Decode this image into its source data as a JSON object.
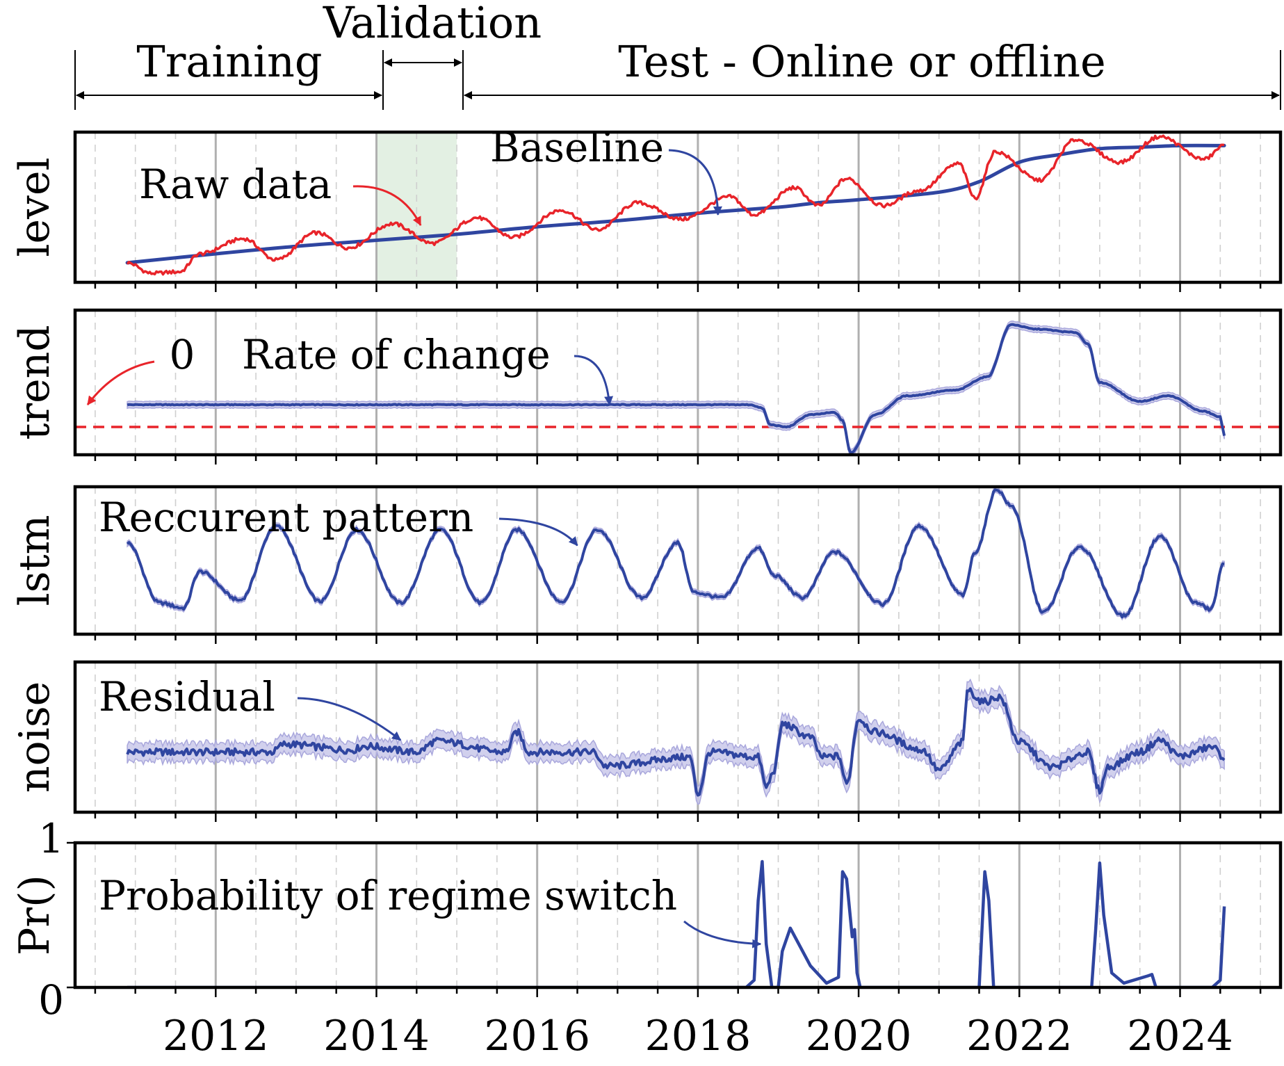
{
  "colors": {
    "series": "#2f45a0",
    "band": "#c9c8ea",
    "raw": "#e8242a",
    "zero_line": "#e8242a",
    "validation_fill": "#e3f0e3",
    "major_grid": "#b0b0b0",
    "minor_grid": "#cfcfcf",
    "frame": "#000000"
  },
  "header": {
    "training_label": "Training",
    "validation_label": "Validation",
    "test_label": "Test - Online or offline"
  },
  "chart_data": {
    "type": "line",
    "x_axis": {
      "xlim": [
        2010.25,
        2025.25
      ],
      "tick_labels": [
        "2012",
        "2014",
        "2016",
        "2018",
        "2020",
        "2022",
        "2024"
      ],
      "tick_values": [
        2012,
        2014,
        2016,
        2018,
        2020,
        2022,
        2024
      ]
    },
    "periods": {
      "training": [
        2010.25,
        2014.0
      ],
      "validation": [
        2014.0,
        2015.0
      ],
      "test": [
        2015.0,
        2025.25
      ]
    },
    "panels": [
      {
        "key": "level",
        "ylabel": "level",
        "ylim": [
          0.05,
          1.05
        ],
        "annotations": [
          {
            "text": "Raw data",
            "points_to": [
              2014.55,
              0.43
            ]
          },
          {
            "text": "Baseline",
            "points_to": [
              2018.25,
              0.5
            ]
          }
        ],
        "series": [
          {
            "name": "Baseline",
            "type": "smooth",
            "x": [
              2010.9,
              2012,
              2013,
              2014,
              2015,
              2016,
              2017,
              2018,
              2019,
              2019.5,
              2020,
              2021,
              2021.5,
              2022,
              2022.5,
              2023,
              2023.5,
              2024,
              2024.55
            ],
            "y": [
              0.18,
              0.24,
              0.29,
              0.33,
              0.37,
              0.42,
              0.46,
              0.51,
              0.55,
              0.58,
              0.6,
              0.65,
              0.72,
              0.85,
              0.9,
              0.94,
              0.95,
              0.96,
              0.96
            ]
          },
          {
            "name": "Raw data",
            "type": "raw",
            "x": [
              2010.9,
              2011.2,
              2011.55,
              2011.8,
              2012.35,
              2012.75,
              2013.25,
              2013.65,
              2014.2,
              2014.7,
              2015.25,
              2015.7,
              2016.3,
              2016.75,
              2017.25,
              2017.8,
              2018.4,
              2018.7,
              2019.2,
              2019.5,
              2019.85,
              2020.3,
              2020.75,
              2021.25,
              2021.45,
              2021.7,
              2022.25,
              2022.7,
              2023.25,
              2023.75,
              2024.3,
              2024.55
            ],
            "y": [
              0.18,
              0.11,
              0.12,
              0.24,
              0.34,
              0.2,
              0.38,
              0.28,
              0.44,
              0.31,
              0.48,
              0.35,
              0.53,
              0.4,
              0.58,
              0.47,
              0.62,
              0.5,
              0.68,
              0.56,
              0.74,
              0.56,
              0.66,
              0.84,
              0.61,
              0.92,
              0.73,
              1.0,
              0.85,
              1.02,
              0.87,
              0.96
            ]
          }
        ]
      },
      {
        "key": "trend",
        "ylabel": "trend",
        "ylim": [
          -0.25,
          1.05
        ],
        "zero_label": "0",
        "zero_value": 0,
        "annotations": [
          {
            "text": "Rate of change",
            "points_to": [
              2016.9,
              0.2
            ]
          }
        ],
        "series": [
          {
            "name": "Rate of change",
            "type": "band_line",
            "band_width": 0.03,
            "x": [
              2010.9,
              2018.65,
              2018.8,
              2018.9,
              2019.1,
              2019.4,
              2019.7,
              2019.8,
              2019.9,
              2020.2,
              2020.6,
              2021.2,
              2021.6,
              2021.9,
              2022.2,
              2022.7,
              2022.85,
              2023.0,
              2023.5,
              2023.85,
              2024.3,
              2024.5,
              2024.55
            ],
            "y": [
              0.2,
              0.2,
              0.17,
              0.02,
              0.0,
              0.11,
              0.13,
              0.06,
              -0.23,
              0.11,
              0.28,
              0.33,
              0.45,
              0.92,
              0.88,
              0.85,
              0.75,
              0.4,
              0.23,
              0.28,
              0.14,
              0.09,
              -0.08
            ]
          }
        ]
      },
      {
        "key": "lstm",
        "ylabel": "lstm",
        "ylim": [
          -0.08,
          1.05
        ],
        "annotations": [
          {
            "text": "Reccurent pattern",
            "points_to": [
              2016.5,
              0.6
            ]
          }
        ],
        "series": [
          {
            "name": "Reccurent pattern",
            "type": "band_line",
            "band_width": 0.02,
            "x": [
              2010.9,
              2011.3,
              2011.6,
              2011.8,
              2012.3,
              2012.75,
              2013.3,
              2013.75,
              2014.3,
              2014.8,
              2015.3,
              2015.75,
              2016.3,
              2016.75,
              2017.3,
              2017.75,
              2017.95,
              2018.3,
              2018.75,
              2018.95,
              2019.3,
              2019.7,
              2020.3,
              2020.75,
              2021.3,
              2021.45,
              2021.72,
              2021.9,
              2022.3,
              2022.75,
              2023.3,
              2023.75,
              2024.2,
              2024.38,
              2024.55
            ],
            "y": [
              0.62,
              0.16,
              0.12,
              0.4,
              0.18,
              0.75,
              0.17,
              0.72,
              0.16,
              0.72,
              0.16,
              0.72,
              0.17,
              0.72,
              0.2,
              0.62,
              0.24,
              0.2,
              0.58,
              0.37,
              0.2,
              0.55,
              0.15,
              0.75,
              0.22,
              0.55,
              1.03,
              0.9,
              0.09,
              0.59,
              0.06,
              0.67,
              0.16,
              0.11,
              0.47
            ]
          }
        ]
      },
      {
        "key": "noise",
        "ylabel": "noise",
        "ylim": [
          -0.6,
          0.9
        ],
        "annotations": [
          {
            "text": "Residual",
            "points_to": [
              2014.3,
              0.12
            ]
          }
        ],
        "series": [
          {
            "name": "Residual",
            "type": "band_line",
            "band_width": 0.09,
            "x": [
              2010.9,
              2012.7,
              2012.85,
              2013.7,
              2013.85,
              2014.5,
              2014.75,
              2015.6,
              2015.75,
              2015.9,
              2016.7,
              2016.85,
              2017.9,
              2018.0,
              2018.15,
              2018.75,
              2018.85,
              2018.95,
              2019.05,
              2019.4,
              2019.55,
              2019.75,
              2019.85,
              2020.0,
              2020.2,
              2020.8,
              2021.0,
              2021.3,
              2021.35,
              2021.55,
              2021.75,
              2022.0,
              2022.4,
              2022.85,
              2023.0,
              2023.1,
              2023.5,
              2023.75,
              2024.0,
              2024.4,
              2024.55
            ],
            "y": [
              0.0,
              0.0,
              0.08,
              0.02,
              0.06,
              0.0,
              0.11,
              0.0,
              0.2,
              0.0,
              0.0,
              -0.14,
              -0.05,
              -0.42,
              0.0,
              -0.05,
              -0.35,
              -0.18,
              0.28,
              0.15,
              -0.05,
              -0.04,
              -0.32,
              0.33,
              0.2,
              0.02,
              -0.18,
              0.1,
              0.62,
              0.5,
              0.55,
              0.1,
              -0.15,
              0.0,
              -0.38,
              -0.15,
              0.0,
              0.12,
              -0.04,
              0.05,
              -0.05
            ]
          }
        ]
      },
      {
        "key": "pr",
        "ylabel": "Pr()",
        "ylim": [
          0,
          1
        ],
        "ytick_labels": [
          "0",
          "1"
        ],
        "ytick_values": [
          0,
          1
        ],
        "annotations": [
          {
            "text": "Probability of regime switch",
            "points_to": [
              2018.78,
              0.3
            ]
          }
        ],
        "series": [
          {
            "name": "Probability of regime switch",
            "type": "line",
            "x": [
              2010.9,
              2018.6,
              2018.7,
              2018.75,
              2018.8,
              2018.85,
              2018.92,
              2019.0,
              2019.05,
              2019.15,
              2019.4,
              2019.6,
              2019.75,
              2019.8,
              2019.85,
              2019.92,
              2019.95,
              2019.98,
              2020.02,
              2021.5,
              2021.57,
              2021.62,
              2021.68,
              2022.9,
              2022.95,
              2023.0,
              2023.05,
              2023.15,
              2023.3,
              2023.6,
              2023.65,
              2023.7,
              2024.4,
              2024.5,
              2024.55
            ],
            "y": [
              0.0,
              0.0,
              0.05,
              0.6,
              0.87,
              0.3,
              0.0,
              0.0,
              0.25,
              0.41,
              0.15,
              0.03,
              0.07,
              0.8,
              0.75,
              0.35,
              0.4,
              0.1,
              0.0,
              0.0,
              0.8,
              0.6,
              0.0,
              0.0,
              0.4,
              0.86,
              0.5,
              0.1,
              0.03,
              0.08,
              0.09,
              0.0,
              0.0,
              0.05,
              0.56
            ]
          }
        ]
      }
    ]
  }
}
